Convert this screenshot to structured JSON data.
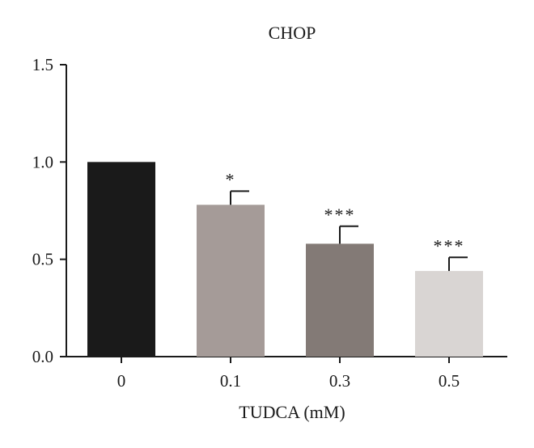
{
  "chart_data": {
    "type": "bar",
    "title": "CHOP",
    "xlabel": "TUDCA (mM)",
    "ylabel": "",
    "categories": [
      "0",
      "0.1",
      "0.3",
      "0.5"
    ],
    "values": [
      1.0,
      0.78,
      0.58,
      0.44
    ],
    "errors": [
      0.0,
      0.07,
      0.09,
      0.07
    ],
    "significance": [
      "",
      "*",
      "***",
      "***"
    ],
    "bar_colors": [
      "#1a1a1a",
      "#a59b98",
      "#837a76",
      "#d9d5d3"
    ],
    "ylim": [
      0,
      1.5
    ],
    "yticks": [
      0.0,
      0.5,
      1.0,
      1.5
    ],
    "ytick_labels": [
      "0.0",
      "0.5",
      "1.0",
      "1.5"
    ],
    "grid": false,
    "legend": "none"
  }
}
